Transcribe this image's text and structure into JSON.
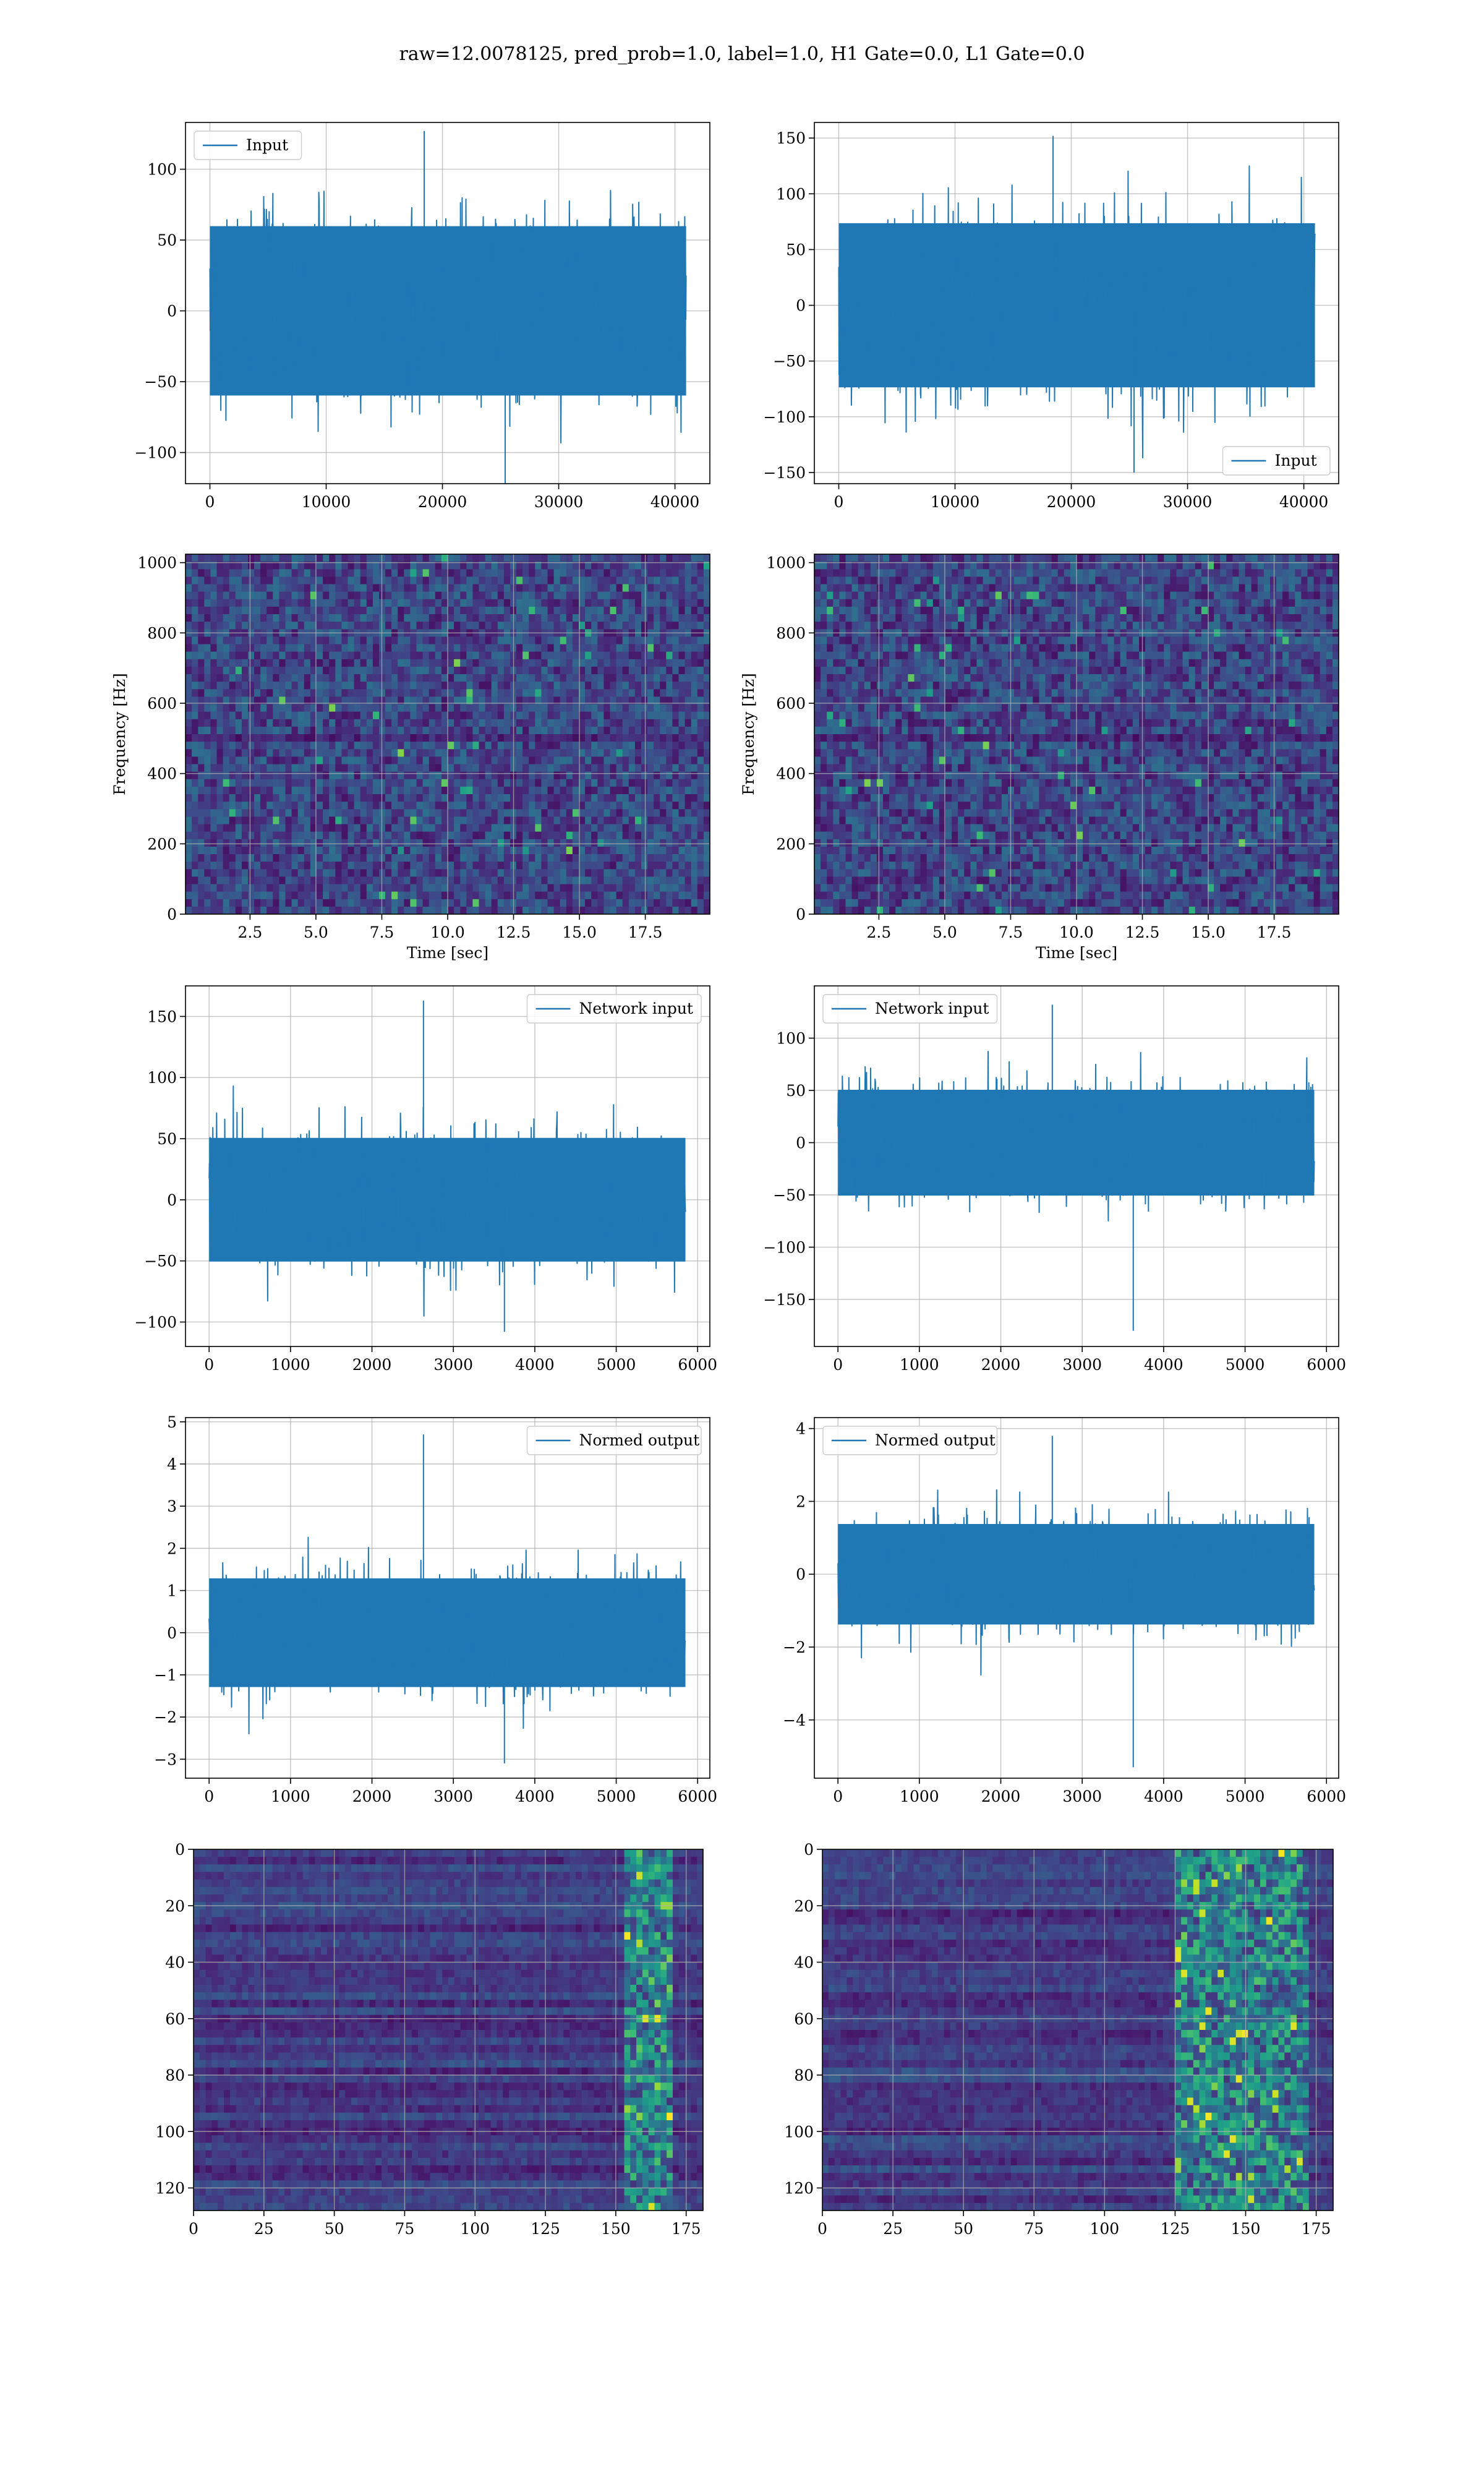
{
  "figure": {
    "suptitle": "raw=12.0078125, pred_prob=1.0, label=1.0, H1 Gate=0.0, L1 Gate=0.0"
  },
  "colors": {
    "line": "#1f77b4",
    "grid": "#b0b0b0",
    "viridis_dark": "#440154",
    "viridis_mid": "#31688e",
    "viridis_green": "#35b779",
    "viridis_yellow": "#fde725"
  },
  "chart_data": [
    {
      "id": "r0c0",
      "type": "line",
      "series": [
        {
          "name": "Input",
          "n_points": 40960,
          "envelope_typical": [
            -65,
            65
          ],
          "envelope_extreme": [
            -122,
            127
          ]
        }
      ],
      "xlim": [
        -2100,
        43000
      ],
      "ylim": [
        -122,
        133
      ],
      "xticks": [
        0,
        10000,
        20000,
        30000,
        40000
      ],
      "xtick_labels": [
        "0",
        "10000",
        "20000",
        "30000",
        "40000"
      ],
      "yticks": [
        -100,
        -50,
        0,
        50,
        100
      ],
      "ytick_labels": [
        "−100",
        "−50",
        "0",
        "50",
        "100"
      ],
      "legend": "upper left",
      "grid": true
    },
    {
      "id": "r0c1",
      "type": "line",
      "series": [
        {
          "name": "Input",
          "n_points": 40960,
          "envelope_typical": [
            -80,
            80
          ],
          "envelope_extreme": [
            -150,
            152
          ]
        }
      ],
      "xlim": [
        -2100,
        43000
      ],
      "ylim": [
        -160,
        164
      ],
      "xticks": [
        0,
        10000,
        20000,
        30000,
        40000
      ],
      "xtick_labels": [
        "0",
        "10000",
        "20000",
        "30000",
        "40000"
      ],
      "yticks": [
        -150,
        -100,
        -50,
        0,
        50,
        100,
        150
      ],
      "ytick_labels": [
        "−150",
        "−100",
        "−50",
        "0",
        "50",
        "100",
        "150"
      ],
      "legend": "lower right",
      "grid": true
    },
    {
      "id": "r1c0",
      "type": "heatmap",
      "colormap": "viridis",
      "xlabel": "Time [sec]",
      "ylabel": "Frequency [Hz]",
      "xlim": [
        0.05,
        19.95
      ],
      "ylim": [
        0,
        1024
      ],
      "xticks": [
        2.5,
        5.0,
        7.5,
        10.0,
        12.5,
        15.0,
        17.5
      ],
      "xtick_labels": [
        "2.5",
        "5.0",
        "7.5",
        "10.0",
        "12.5",
        "15.0",
        "17.5"
      ],
      "yticks": [
        0,
        200,
        400,
        600,
        800,
        1000
      ],
      "ytick_labels": [
        "0",
        "200",
        "400",
        "600",
        "800",
        "1000"
      ],
      "grid": true
    },
    {
      "id": "r1c1",
      "type": "heatmap",
      "colormap": "viridis",
      "xlabel": "Time [sec]",
      "ylabel": "Frequency [Hz]",
      "xlim": [
        0.05,
        19.95
      ],
      "ylim": [
        0,
        1024
      ],
      "xticks": [
        2.5,
        5.0,
        7.5,
        10.0,
        12.5,
        15.0,
        17.5
      ],
      "xtick_labels": [
        "2.5",
        "5.0",
        "7.5",
        "10.0",
        "12.5",
        "15.0",
        "17.5"
      ],
      "yticks": [
        0,
        200,
        400,
        600,
        800,
        1000
      ],
      "ytick_labels": [
        "0",
        "200",
        "400",
        "600",
        "800",
        "1000"
      ],
      "grid": true
    },
    {
      "id": "r2c0",
      "type": "line",
      "series": [
        {
          "name": "Network input",
          "n_points": 5850,
          "envelope_typical": [
            -55,
            55
          ],
          "envelope_extreme": [
            -108,
            163
          ]
        }
      ],
      "xlim": [
        -290,
        6150
      ],
      "ylim": [
        -120,
        175
      ],
      "xticks": [
        0,
        1000,
        2000,
        3000,
        4000,
        5000,
        6000
      ],
      "xtick_labels": [
        "0",
        "1000",
        "2000",
        "3000",
        "4000",
        "5000",
        "6000"
      ],
      "yticks": [
        -100,
        -50,
        0,
        50,
        100,
        150
      ],
      "ytick_labels": [
        "−100",
        "−50",
        "0",
        "50",
        "100",
        "150"
      ],
      "legend": "upper right",
      "grid": true
    },
    {
      "id": "r2c1",
      "type": "line",
      "series": [
        {
          "name": "Network input",
          "n_points": 5850,
          "envelope_typical": [
            -55,
            55
          ],
          "envelope_extreme": [
            -180,
            132
          ]
        }
      ],
      "xlim": [
        -290,
        6150
      ],
      "ylim": [
        -195,
        150
      ],
      "xticks": [
        0,
        1000,
        2000,
        3000,
        4000,
        5000,
        6000
      ],
      "xtick_labels": [
        "0",
        "1000",
        "2000",
        "3000",
        "4000",
        "5000",
        "6000"
      ],
      "yticks": [
        -150,
        -100,
        -50,
        0,
        50,
        100
      ],
      "ytick_labels": [
        "−150",
        "−100",
        "−50",
        "0",
        "50",
        "100"
      ],
      "legend": "upper left",
      "grid": true
    },
    {
      "id": "r3c0",
      "type": "line",
      "series": [
        {
          "name": "Normed output",
          "n_points": 5850,
          "envelope_typical": [
            -1.4,
            1.4
          ],
          "envelope_extreme": [
            -3.1,
            4.7
          ]
        }
      ],
      "xlim": [
        -290,
        6150
      ],
      "ylim": [
        -3.45,
        5.1
      ],
      "xticks": [
        0,
        1000,
        2000,
        3000,
        4000,
        5000,
        6000
      ],
      "xtick_labels": [
        "0",
        "1000",
        "2000",
        "3000",
        "4000",
        "5000",
        "6000"
      ],
      "yticks": [
        -3,
        -2,
        -1,
        0,
        1,
        2,
        3,
        4,
        5
      ],
      "ytick_labels": [
        "−3",
        "−2",
        "−1",
        "0",
        "1",
        "2",
        "3",
        "4",
        "5"
      ],
      "legend": "upper right",
      "grid": true
    },
    {
      "id": "r3c1",
      "type": "line",
      "series": [
        {
          "name": "Normed output",
          "n_points": 5850,
          "envelope_typical": [
            -1.5,
            1.5
          ],
          "envelope_extreme": [
            -5.3,
            3.8
          ]
        }
      ],
      "xlim": [
        -290,
        6150
      ],
      "ylim": [
        -5.6,
        4.3
      ],
      "xticks": [
        0,
        1000,
        2000,
        3000,
        4000,
        5000,
        6000
      ],
      "xtick_labels": [
        "0",
        "1000",
        "2000",
        "3000",
        "4000",
        "5000",
        "6000"
      ],
      "yticks": [
        -4,
        -2,
        0,
        2,
        4
      ],
      "ytick_labels": [
        "−4",
        "−2",
        "0",
        "2",
        "4"
      ],
      "legend": "upper left",
      "grid": true
    },
    {
      "id": "r4c0",
      "type": "heatmap",
      "colormap": "viridis",
      "xlim": [
        0,
        181
      ],
      "ylim": [
        128,
        0
      ],
      "xticks": [
        0,
        25,
        50,
        75,
        100,
        125,
        150,
        175
      ],
      "xtick_labels": [
        "0",
        "25",
        "50",
        "75",
        "100",
        "125",
        "150",
        "175"
      ],
      "yticks": [
        0,
        20,
        40,
        60,
        80,
        100,
        120
      ],
      "ytick_labels": [
        "0",
        "20",
        "40",
        "60",
        "80",
        "100",
        "120"
      ],
      "bright_band_columns": [
        152,
        170
      ],
      "grid": true
    },
    {
      "id": "r4c1",
      "type": "heatmap",
      "colormap": "viridis",
      "xlim": [
        0,
        181
      ],
      "ylim": [
        128,
        0
      ],
      "xticks": [
        0,
        25,
        50,
        75,
        100,
        125,
        150,
        175
      ],
      "xtick_labels": [
        "0",
        "25",
        "50",
        "75",
        "100",
        "125",
        "150",
        "175"
      ],
      "yticks": [
        0,
        20,
        40,
        60,
        80,
        100,
        120
      ],
      "ytick_labels": [
        "0",
        "20",
        "40",
        "60",
        "80",
        "100",
        "120"
      ],
      "bright_band_columns": [
        125,
        172
      ],
      "grid": true
    }
  ]
}
